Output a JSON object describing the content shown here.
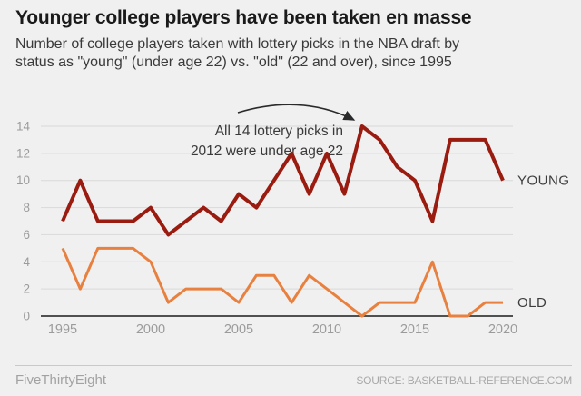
{
  "header": {
    "title": "Younger college players have been taken en masse",
    "subtitle_line1": "Number of college players taken with lottery picks in the NBA draft by",
    "subtitle_line2": "status as \"young\" (under age 22) vs. \"old\" (22 and over), since 1995"
  },
  "chart_data": {
    "type": "line",
    "x": [
      1995,
      1996,
      1997,
      1998,
      1999,
      2000,
      2001,
      2002,
      2003,
      2004,
      2005,
      2006,
      2007,
      2008,
      2009,
      2010,
      2011,
      2012,
      2013,
      2014,
      2015,
      2016,
      2017,
      2018,
      2019,
      2020
    ],
    "series": [
      {
        "name": "YOUNG",
        "color": "#9a1b0f",
        "width": 4,
        "values": [
          7,
          10,
          7,
          7,
          7,
          8,
          6,
          7,
          8,
          7,
          9,
          8,
          10,
          12,
          9,
          12,
          9,
          14,
          13,
          11,
          10,
          7,
          13,
          13,
          13,
          10
        ]
      },
      {
        "name": "OLD",
        "color": "#e8813f",
        "width": 3,
        "values": [
          5,
          2,
          5,
          5,
          5,
          4,
          1,
          2,
          2,
          2,
          1,
          3,
          3,
          1,
          3,
          2,
          1,
          0,
          1,
          1,
          1,
          4,
          0,
          0,
          1,
          1
        ]
      }
    ],
    "ylim": [
      0,
      14
    ],
    "yticks": [
      0,
      2,
      4,
      6,
      8,
      10,
      12,
      14
    ],
    "xticks": [
      1995,
      2000,
      2005,
      2010,
      2015,
      2020
    ],
    "grid": true,
    "legend_position": "end-of-line-labels",
    "annotation": {
      "line1": "All 14 lottery picks in",
      "line2": "2012 were under age 22",
      "target_year": 2012,
      "target_value": 14
    }
  },
  "footer": {
    "brand": "FiveThirtyEight",
    "source": "SOURCE: BASKETBALL-REFERENCE.COM"
  },
  "colors": {
    "background": "#f0f0f0",
    "grid": "#d9d9d9",
    "axis": "#1a1a1a",
    "tick_label": "#9b9b9b",
    "annotation_text": "#3a3a3a",
    "series_label": "#3d3d3d",
    "arrow": "#2a2a2a"
  }
}
